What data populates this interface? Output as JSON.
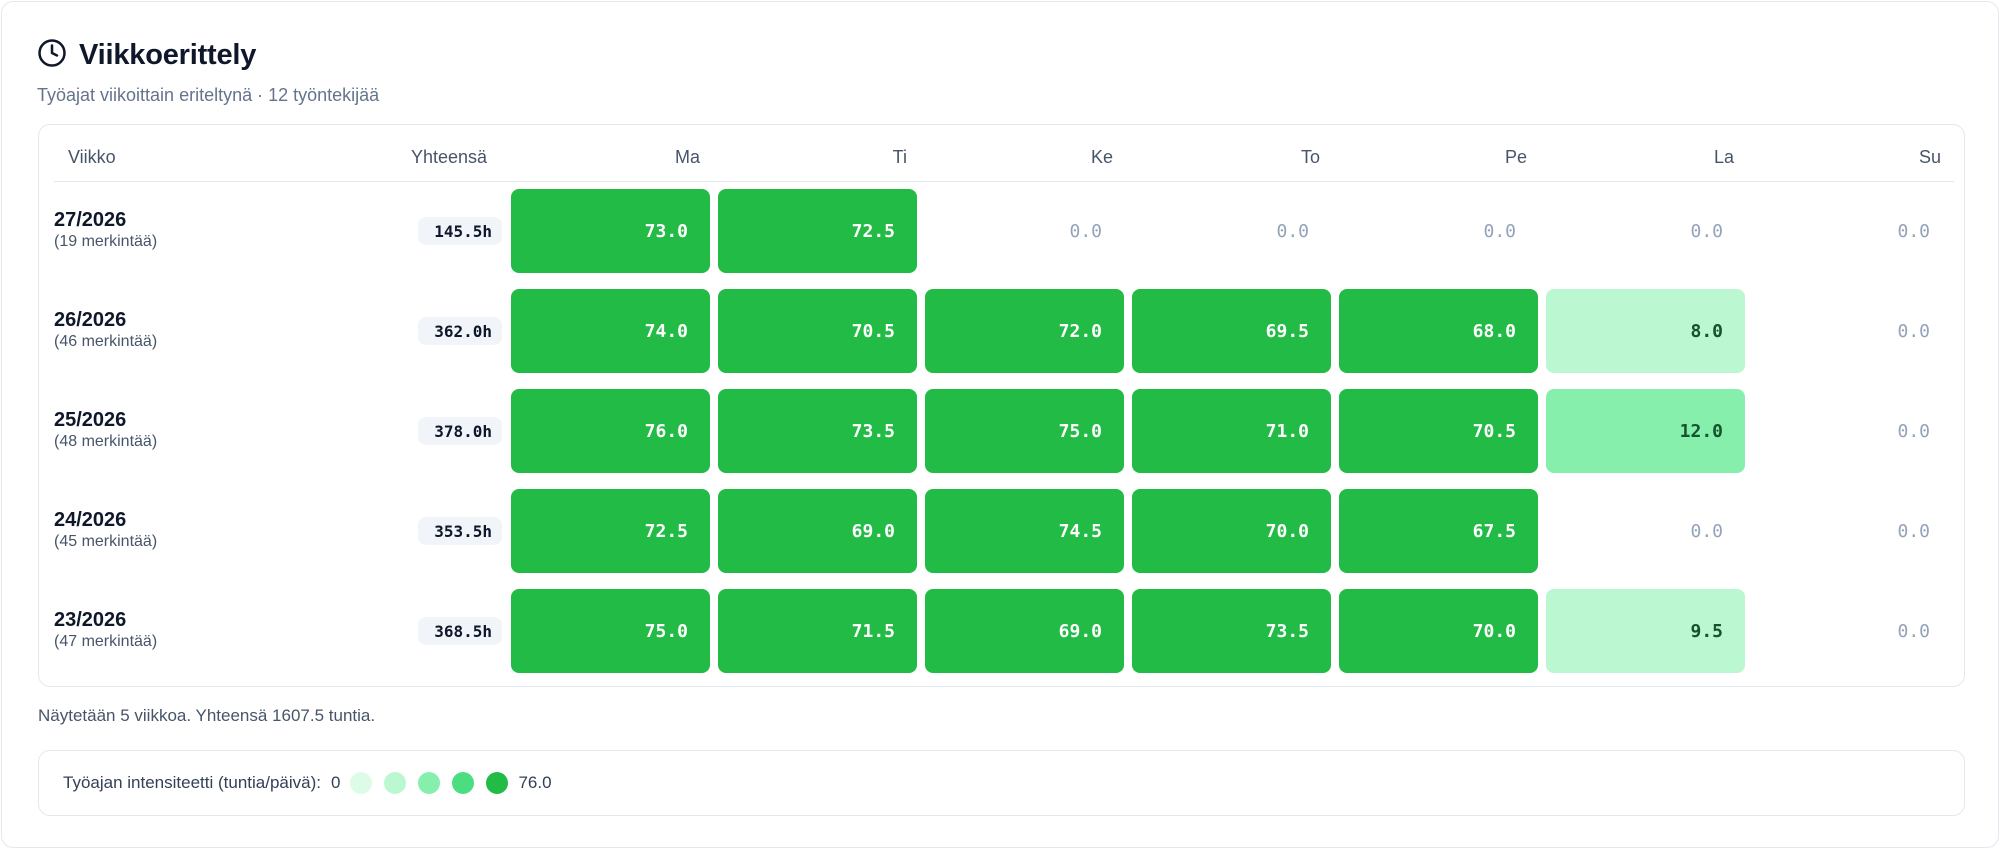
{
  "header": {
    "title": "Viikkoerittely",
    "subtitle": "Työajat viikoittain eriteltynä · 12 työntekijää",
    "icon": "clock-icon"
  },
  "table": {
    "columns": {
      "week": "Viikko",
      "total": "Yhteensä",
      "days": [
        "Ma",
        "Ti",
        "Ke",
        "To",
        "Pe",
        "La",
        "Su"
      ]
    },
    "rows": [
      {
        "week": "27/2026",
        "entries": "(19 merkintää)",
        "total": "145.5h",
        "days": [
          "73.0",
          "72.5",
          "0.0",
          "0.0",
          "0.0",
          "0.0",
          "0.0"
        ]
      },
      {
        "week": "26/2026",
        "entries": "(46 merkintää)",
        "total": "362.0h",
        "days": [
          "74.0",
          "70.5",
          "72.0",
          "69.5",
          "68.0",
          "8.0",
          "0.0"
        ]
      },
      {
        "week": "25/2026",
        "entries": "(48 merkintää)",
        "total": "378.0h",
        "days": [
          "76.0",
          "73.5",
          "75.0",
          "71.0",
          "70.5",
          "12.0",
          "0.0"
        ]
      },
      {
        "week": "24/2026",
        "entries": "(45 merkintää)",
        "total": "353.5h",
        "days": [
          "72.5",
          "69.0",
          "74.5",
          "70.0",
          "67.5",
          "0.0",
          "0.0"
        ]
      },
      {
        "week": "23/2026",
        "entries": "(47 merkintää)",
        "total": "368.5h",
        "days": [
          "75.0",
          "71.5",
          "69.0",
          "73.5",
          "70.0",
          "9.5",
          "0.0"
        ]
      }
    ]
  },
  "footer": {
    "summary": "Näytetään 5 viikkoa. Yhteensä 1607.5 tuntia."
  },
  "legend": {
    "label": "Työajan intensiteetti (tuntia/päivä):",
    "min": "0",
    "max": "76.0",
    "colors": [
      "#dcfce7",
      "#bbf7d0",
      "#86efac",
      "#4ade80",
      "#22bb46"
    ]
  },
  "colors": {
    "high": "#22bb46",
    "mid": "#86efac",
    "low": "#bbf7d0",
    "zero_text": "#94a3b8"
  }
}
